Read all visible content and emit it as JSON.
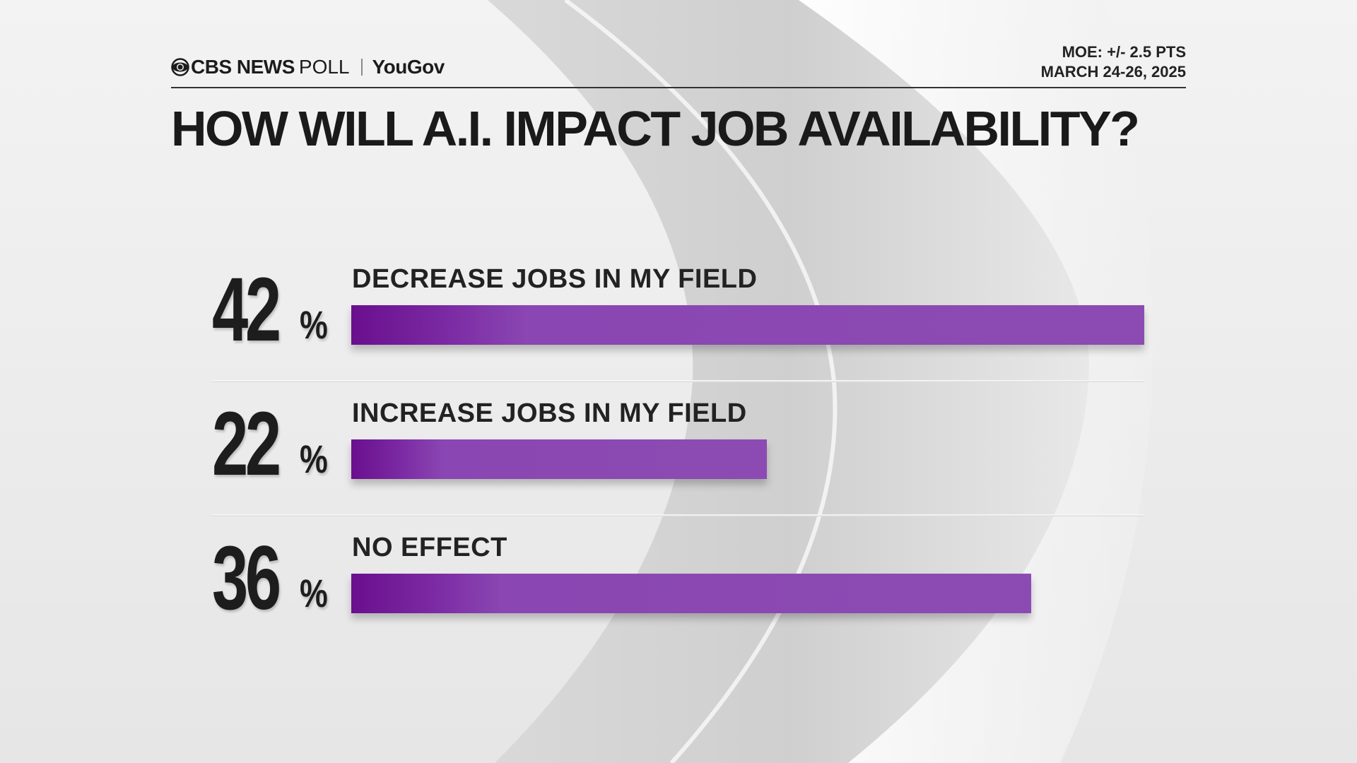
{
  "header": {
    "logo_cbs": "CBS NEWS",
    "logo_poll": "POLL",
    "logo_yougov": "YouGov",
    "moe": "MOE: +/- 2.5 PTS",
    "dates": "MARCH 24-26, 2025"
  },
  "title": "HOW WILL A.I. IMPACT JOB AVAILABILITY?",
  "colors": {
    "bar_start": "#6a0f8e",
    "bar_end": "#8c4bb3",
    "text": "#1d1d1d"
  },
  "chart_data": {
    "type": "bar",
    "orientation": "horizontal",
    "title": "HOW WILL A.I. IMPACT JOB AVAILABILITY?",
    "categories": [
      "DECREASE JOBS IN MY FIELD",
      "INCREASE JOBS IN MY FIELD",
      "NO EFFECT"
    ],
    "values": [
      42,
      22,
      36
    ],
    "value_labels": [
      "42",
      "22",
      "36"
    ],
    "unit": "%",
    "xlim": [
      0,
      42
    ]
  }
}
